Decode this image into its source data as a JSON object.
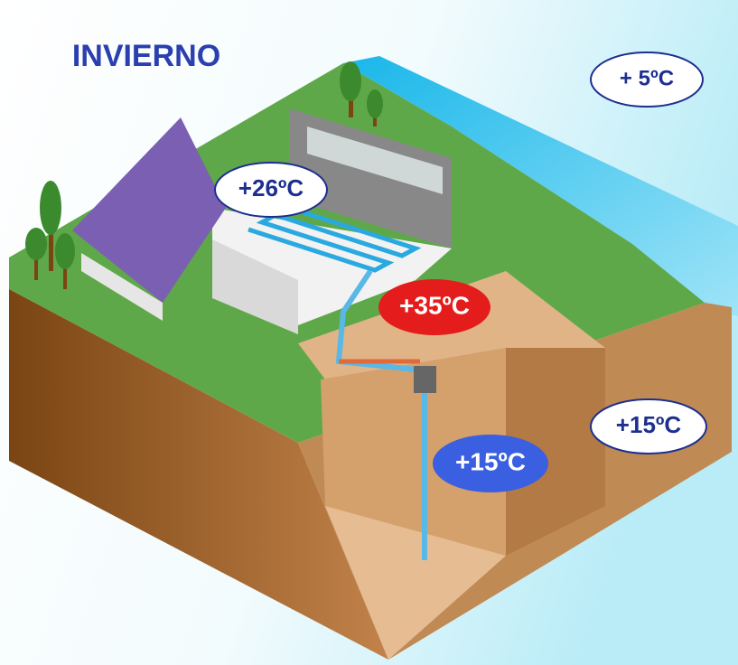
{
  "title": "INVIERNO",
  "labels": {
    "air": "+ 5ºC",
    "indoor": "+26ºC",
    "floor_heating": "+35ºC",
    "borehole": "+15ºC",
    "ground": "+15ºC"
  }
}
